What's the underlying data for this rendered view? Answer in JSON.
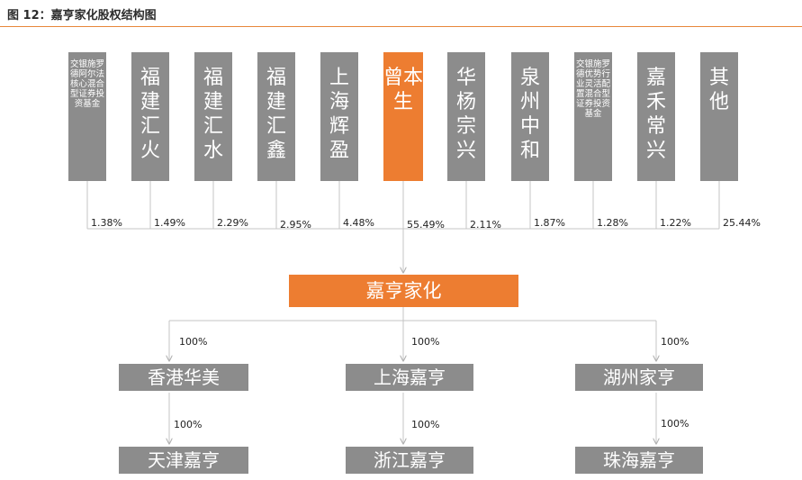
{
  "title": "图 12：嘉亨家化股权结构图",
  "colors": {
    "highlight": "#ed7d31",
    "box": "#8c8c8c",
    "rule": "#e8873a"
  },
  "shareholders": [
    {
      "name": "交银施罗德阿尔法核心混合型证券投资基金",
      "pct": "1.38%"
    },
    {
      "name": "福建汇火",
      "pct": "1.49%"
    },
    {
      "name": "福建汇水",
      "pct": "2.29%"
    },
    {
      "name": "福建汇鑫",
      "pct": "2.95%"
    },
    {
      "name": "上海辉盈",
      "pct": "4.48%"
    },
    {
      "name": "曾本生",
      "pct": "55.49%"
    },
    {
      "name": "华杨宗兴",
      "pct": "2.11%"
    },
    {
      "name": "泉州中和",
      "pct": "1.87%"
    },
    {
      "name": "交银施罗德优势行业灵活配置混合型证券投资基金",
      "pct": "1.28%"
    },
    {
      "name": "嘉禾常兴",
      "pct": "1.22%"
    },
    {
      "name": "其他",
      "pct": "25.44%"
    }
  ],
  "company": "嘉亨家化",
  "subs_row1": [
    {
      "name": "香港华美",
      "pct": "100%"
    },
    {
      "name": "上海嘉亨",
      "pct": "100%"
    },
    {
      "name": "湖州家亨",
      "pct": "100%"
    }
  ],
  "subs_row2": [
    {
      "name": "天津嘉亨",
      "pct": "100%"
    },
    {
      "name": "浙江嘉亨",
      "pct": "100%"
    },
    {
      "name": "珠海嘉亨",
      "pct": "100%"
    }
  ]
}
